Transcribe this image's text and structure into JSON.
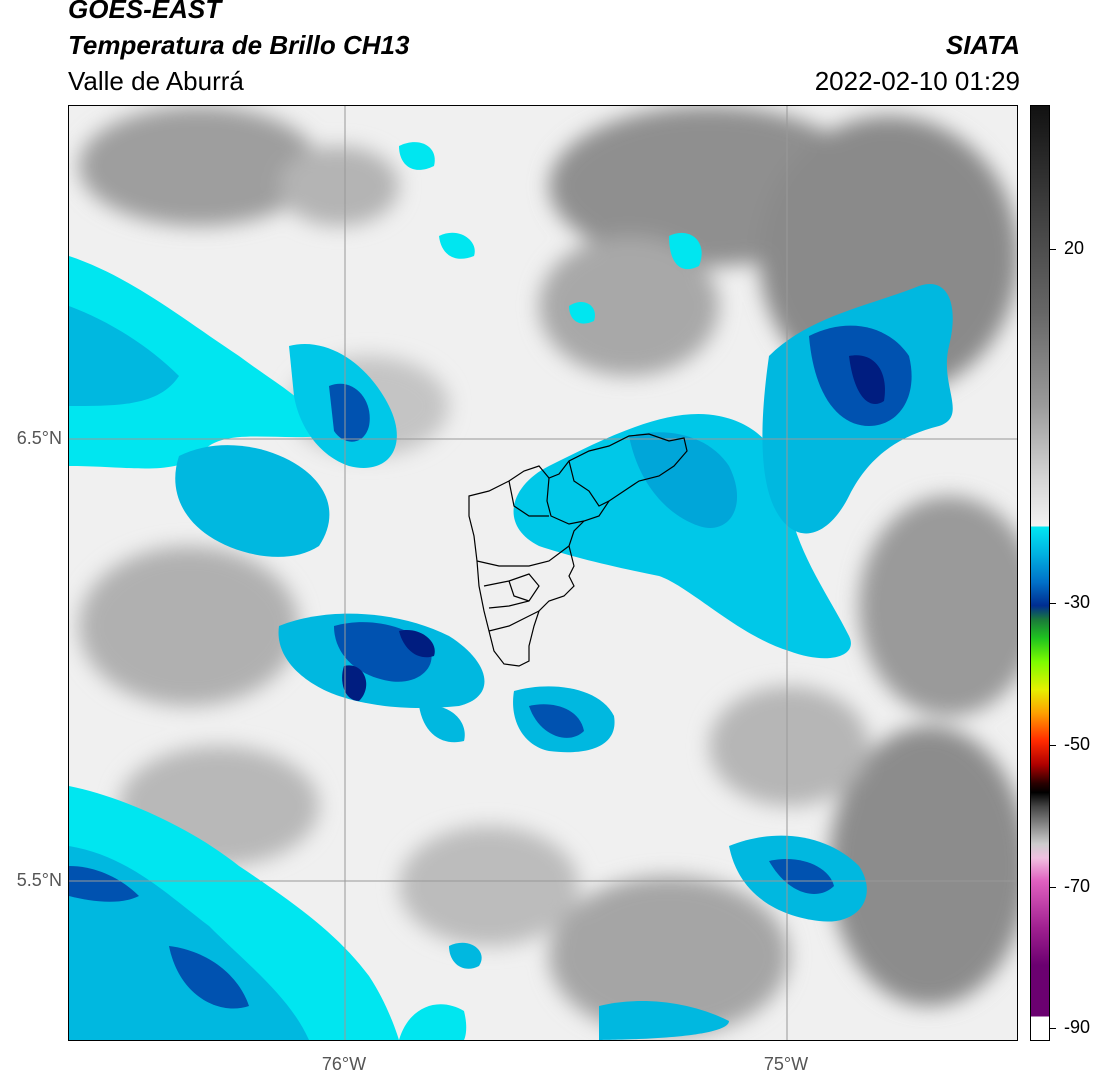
{
  "header": {
    "satellite": "GOES-EAST",
    "product": "Temperatura de Brillo CH13",
    "region": "Valle de Aburrá",
    "organization": "SIATA",
    "datetime": "2022-02-10 01:29"
  },
  "axes": {
    "lat_ticks": [
      "6.5°N",
      "5.5°N"
    ],
    "lon_ticks": [
      "76°W",
      "75°W"
    ]
  },
  "colorbar": {
    "tick_labels": [
      "20",
      "-30",
      "-50",
      "-70",
      "-90"
    ],
    "colors": {
      "warm_black": "#111111",
      "gray": "#888888",
      "light": "#f2f2f2",
      "cyan": "#00e8f2",
      "blue": "#0070c8",
      "navy": "#002d90",
      "green": "#1fc41f",
      "yellow": "#e6f000",
      "orange": "#ffa000",
      "red": "#ff2a00",
      "dark_red": "#b00000",
      "pink": "#e060c0",
      "purple": "#6b0070"
    }
  },
  "map": {
    "background_color": "#f0f0f0",
    "cloud_colors": {
      "cold_cyan": "#00e6f0",
      "medium_blue": "#00a6d9",
      "deep_blue": "#0052b0",
      "darkest_blue": "#001d80",
      "warm_gray": "#a8a8a8",
      "dark_gray": "#8c8c8c"
    }
  }
}
